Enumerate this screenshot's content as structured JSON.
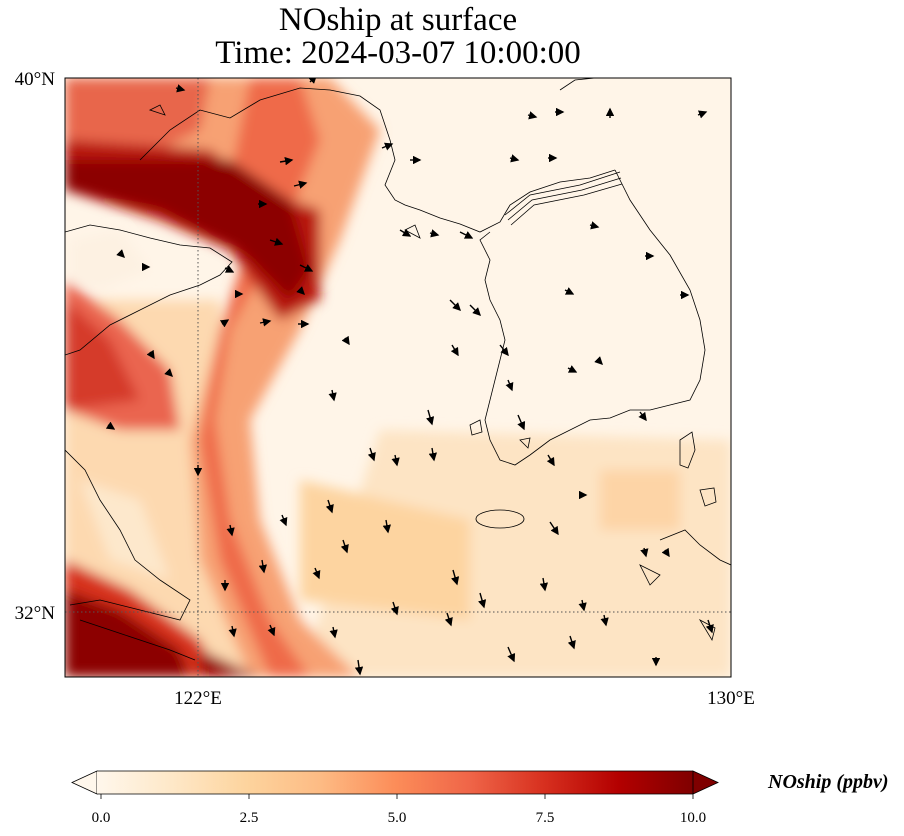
{
  "title": {
    "line1": "NOship at surface",
    "line2": "Time: 2024-03-07 10:00:00"
  },
  "map": {
    "extent": {
      "lon_min": 118,
      "lon_max": 130,
      "lat_min": 30.8,
      "lat_max": 40
    },
    "gridlines": {
      "lon": [
        {
          "value": 122,
          "label": "122°E"
        },
        {
          "value": 130,
          "label": "130°E"
        }
      ],
      "lat": [
        {
          "value": 32,
          "label": "32°N"
        },
        {
          "value": 40,
          "label": "40°N"
        }
      ],
      "style": "dotted"
    },
    "field_name": "NOship",
    "units": "ppbv",
    "overlay": "wind vectors"
  },
  "colorbar": {
    "label": "NOship (ppbv)",
    "ticks": [
      "0.0",
      "2.5",
      "5.0",
      "7.5",
      "10.0"
    ],
    "min": 0,
    "max": 10,
    "extend": "both",
    "colormap": "OrRd",
    "colors": [
      "#fff7ec",
      "#fee8c8",
      "#fdd49e",
      "#fdbb84",
      "#fc8d59",
      "#ef6548",
      "#d7301f",
      "#b30000",
      "#7f0000"
    ]
  }
}
